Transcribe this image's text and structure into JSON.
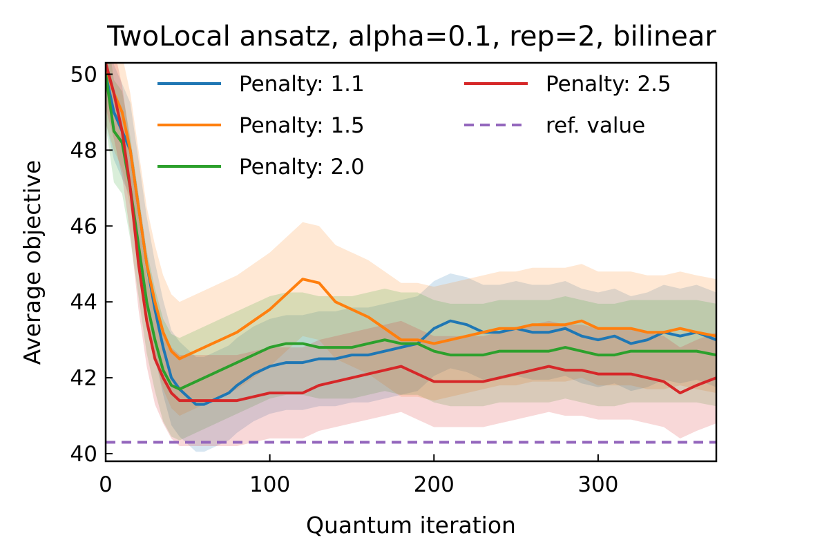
{
  "chart_data": {
    "type": "line",
    "title": "TwoLocal ansatz, alpha=0.1, rep=2, bilinear",
    "xlabel": "Quantum iteration",
    "ylabel": "Average objective",
    "xlim": [
      0,
      372
    ],
    "ylim": [
      39.8,
      50.3
    ],
    "xticks": [
      0,
      100,
      200,
      300
    ],
    "yticks": [
      40,
      42,
      44,
      46,
      48,
      50
    ],
    "grid": false,
    "legend": {
      "placement": "top",
      "columns": 2
    },
    "reference_line": {
      "name": "ref. value",
      "y": 40.3,
      "color": "#9467bd",
      "style": "dashed"
    },
    "series": [
      {
        "name": "Penalty: 1.1",
        "color": "#1f77b4",
        "band_halfwidth": 1.25,
        "x": [
          0,
          5,
          10,
          15,
          20,
          25,
          30,
          35,
          40,
          45,
          50,
          55,
          60,
          65,
          70,
          75,
          80,
          90,
          100,
          110,
          120,
          130,
          140,
          150,
          160,
          170,
          180,
          190,
          200,
          210,
          220,
          230,
          240,
          250,
          260,
          270,
          280,
          290,
          300,
          310,
          320,
          330,
          340,
          350,
          360,
          372
        ],
        "values": [
          50.0,
          49.0,
          48.5,
          48.0,
          46.5,
          45.0,
          43.8,
          42.8,
          42.0,
          41.7,
          41.5,
          41.3,
          41.3,
          41.4,
          41.5,
          41.6,
          41.8,
          42.1,
          42.3,
          42.4,
          42.4,
          42.5,
          42.5,
          42.6,
          42.6,
          42.7,
          42.8,
          42.9,
          43.3,
          43.5,
          43.4,
          43.2,
          43.2,
          43.3,
          43.2,
          43.2,
          43.3,
          43.1,
          43.0,
          43.1,
          42.9,
          43.0,
          43.2,
          43.1,
          43.2,
          43.0
        ]
      },
      {
        "name": "Penalty: 1.5",
        "color": "#ff7f0e",
        "band_halfwidth": 1.5,
        "x": [
          0,
          5,
          10,
          15,
          20,
          25,
          30,
          35,
          40,
          45,
          50,
          55,
          60,
          65,
          70,
          75,
          80,
          90,
          100,
          110,
          120,
          130,
          140,
          150,
          160,
          170,
          180,
          190,
          200,
          210,
          220,
          230,
          240,
          250,
          260,
          270,
          280,
          290,
          300,
          310,
          320,
          330,
          340,
          350,
          360,
          372
        ],
        "values": [
          50.2,
          49.5,
          49.0,
          48.0,
          46.5,
          45.0,
          44.0,
          43.2,
          42.7,
          42.5,
          42.6,
          42.7,
          42.8,
          42.9,
          43.0,
          43.1,
          43.2,
          43.5,
          43.8,
          44.2,
          44.6,
          44.5,
          44.0,
          43.8,
          43.6,
          43.3,
          43.0,
          43.0,
          42.9,
          43.0,
          43.1,
          43.2,
          43.3,
          43.3,
          43.4,
          43.4,
          43.4,
          43.5,
          43.3,
          43.3,
          43.3,
          43.2,
          43.2,
          43.3,
          43.2,
          43.1
        ]
      },
      {
        "name": "Penalty: 2.0",
        "color": "#2ca02c",
        "band_halfwidth": 1.35,
        "x": [
          0,
          5,
          10,
          15,
          20,
          25,
          30,
          35,
          40,
          45,
          50,
          55,
          60,
          65,
          70,
          75,
          80,
          90,
          100,
          110,
          120,
          130,
          140,
          150,
          160,
          170,
          180,
          190,
          200,
          210,
          220,
          230,
          240,
          250,
          260,
          270,
          280,
          290,
          300,
          310,
          320,
          330,
          340,
          350,
          360,
          372
        ],
        "values": [
          50.0,
          48.5,
          48.2,
          47.0,
          45.5,
          44.0,
          43.0,
          42.2,
          41.8,
          41.7,
          41.8,
          41.9,
          42.0,
          42.1,
          42.2,
          42.3,
          42.4,
          42.6,
          42.8,
          42.9,
          42.9,
          42.8,
          42.8,
          42.8,
          42.9,
          43.0,
          42.9,
          42.9,
          42.7,
          42.6,
          42.6,
          42.6,
          42.7,
          42.7,
          42.7,
          42.7,
          42.8,
          42.7,
          42.6,
          42.6,
          42.7,
          42.7,
          42.7,
          42.7,
          42.7,
          42.6
        ]
      },
      {
        "name": "Penalty: 2.5",
        "color": "#d62728",
        "band_halfwidth": 1.2,
        "x": [
          0,
          5,
          10,
          15,
          20,
          25,
          30,
          35,
          40,
          45,
          50,
          55,
          60,
          65,
          70,
          75,
          80,
          90,
          100,
          110,
          120,
          130,
          140,
          150,
          160,
          170,
          180,
          190,
          200,
          210,
          220,
          230,
          240,
          250,
          260,
          270,
          280,
          290,
          300,
          310,
          320,
          330,
          340,
          350,
          360,
          372
        ],
        "values": [
          50.3,
          49.5,
          48.5,
          47.0,
          45.0,
          43.5,
          42.5,
          42.0,
          41.6,
          41.4,
          41.4,
          41.4,
          41.4,
          41.4,
          41.4,
          41.4,
          41.4,
          41.5,
          41.6,
          41.6,
          41.6,
          41.8,
          41.9,
          42.0,
          42.1,
          42.2,
          42.3,
          42.1,
          41.9,
          41.9,
          41.9,
          41.9,
          42.0,
          42.1,
          42.2,
          42.3,
          42.2,
          42.2,
          42.1,
          42.1,
          42.1,
          42.0,
          41.9,
          41.6,
          41.8,
          42.0
        ]
      }
    ]
  }
}
